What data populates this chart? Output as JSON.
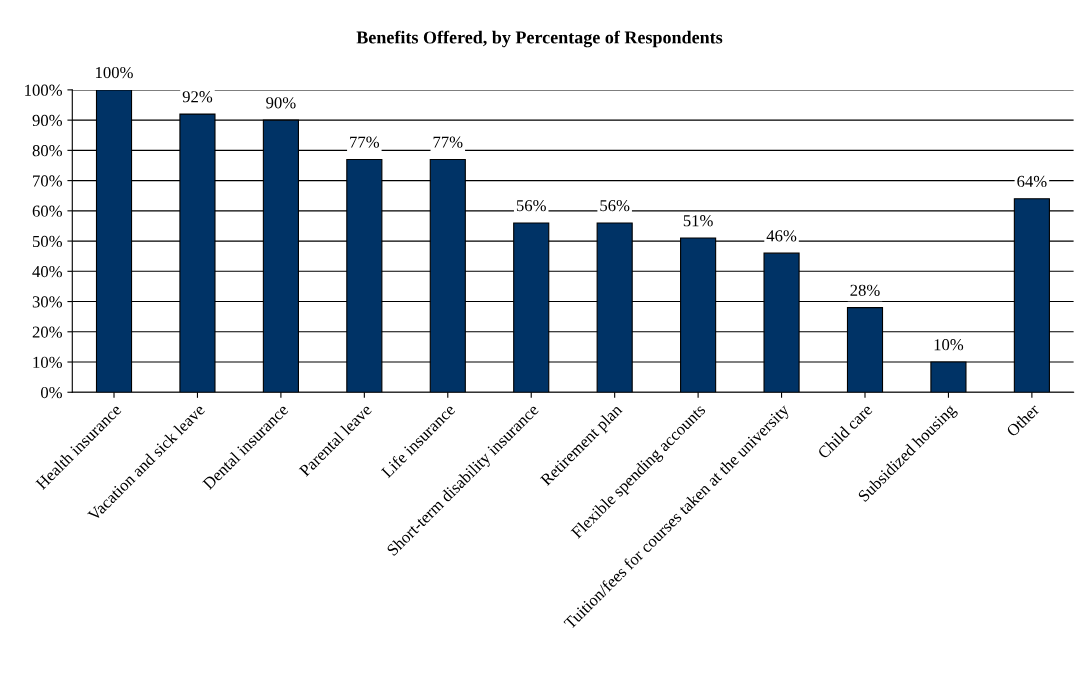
{
  "chart_data": {
    "type": "bar",
    "title": "Benefits Offered, by Percentage of Respondents",
    "categories": [
      "Health insurance",
      "Vacation and sick leave",
      "Dental insurance",
      "Parental leave",
      "Life insurance",
      "Short-term disability insurance",
      "Retirement plan",
      "Flexible spending accounts",
      "Tuition/fees for courses taken at the university",
      "Child care",
      "Subsidized housing",
      "Other"
    ],
    "values": [
      100,
      92,
      90,
      77,
      77,
      56,
      56,
      51,
      46,
      28,
      10,
      64
    ],
    "value_labels": [
      "100%",
      "92%",
      "90%",
      "77%",
      "77%",
      "56%",
      "56%",
      "51%",
      "46%",
      "28%",
      "10%",
      "64%"
    ],
    "color": "#003366",
    "ylim": [
      0,
      100
    ],
    "yticks": [
      {
        "value": 0,
        "label": "0%"
      },
      {
        "value": 10,
        "label": "10%"
      },
      {
        "value": 20,
        "label": "20%"
      },
      {
        "value": 30,
        "label": "30%"
      },
      {
        "value": 40,
        "label": "40%"
      },
      {
        "value": 50,
        "label": "50%"
      },
      {
        "value": 60,
        "label": "60%"
      },
      {
        "value": 70,
        "label": "70%"
      },
      {
        "value": 80,
        "label": "80%"
      },
      {
        "value": 90,
        "label": "90%"
      },
      {
        "value": 100,
        "label": "100%"
      }
    ],
    "grid": "y"
  }
}
